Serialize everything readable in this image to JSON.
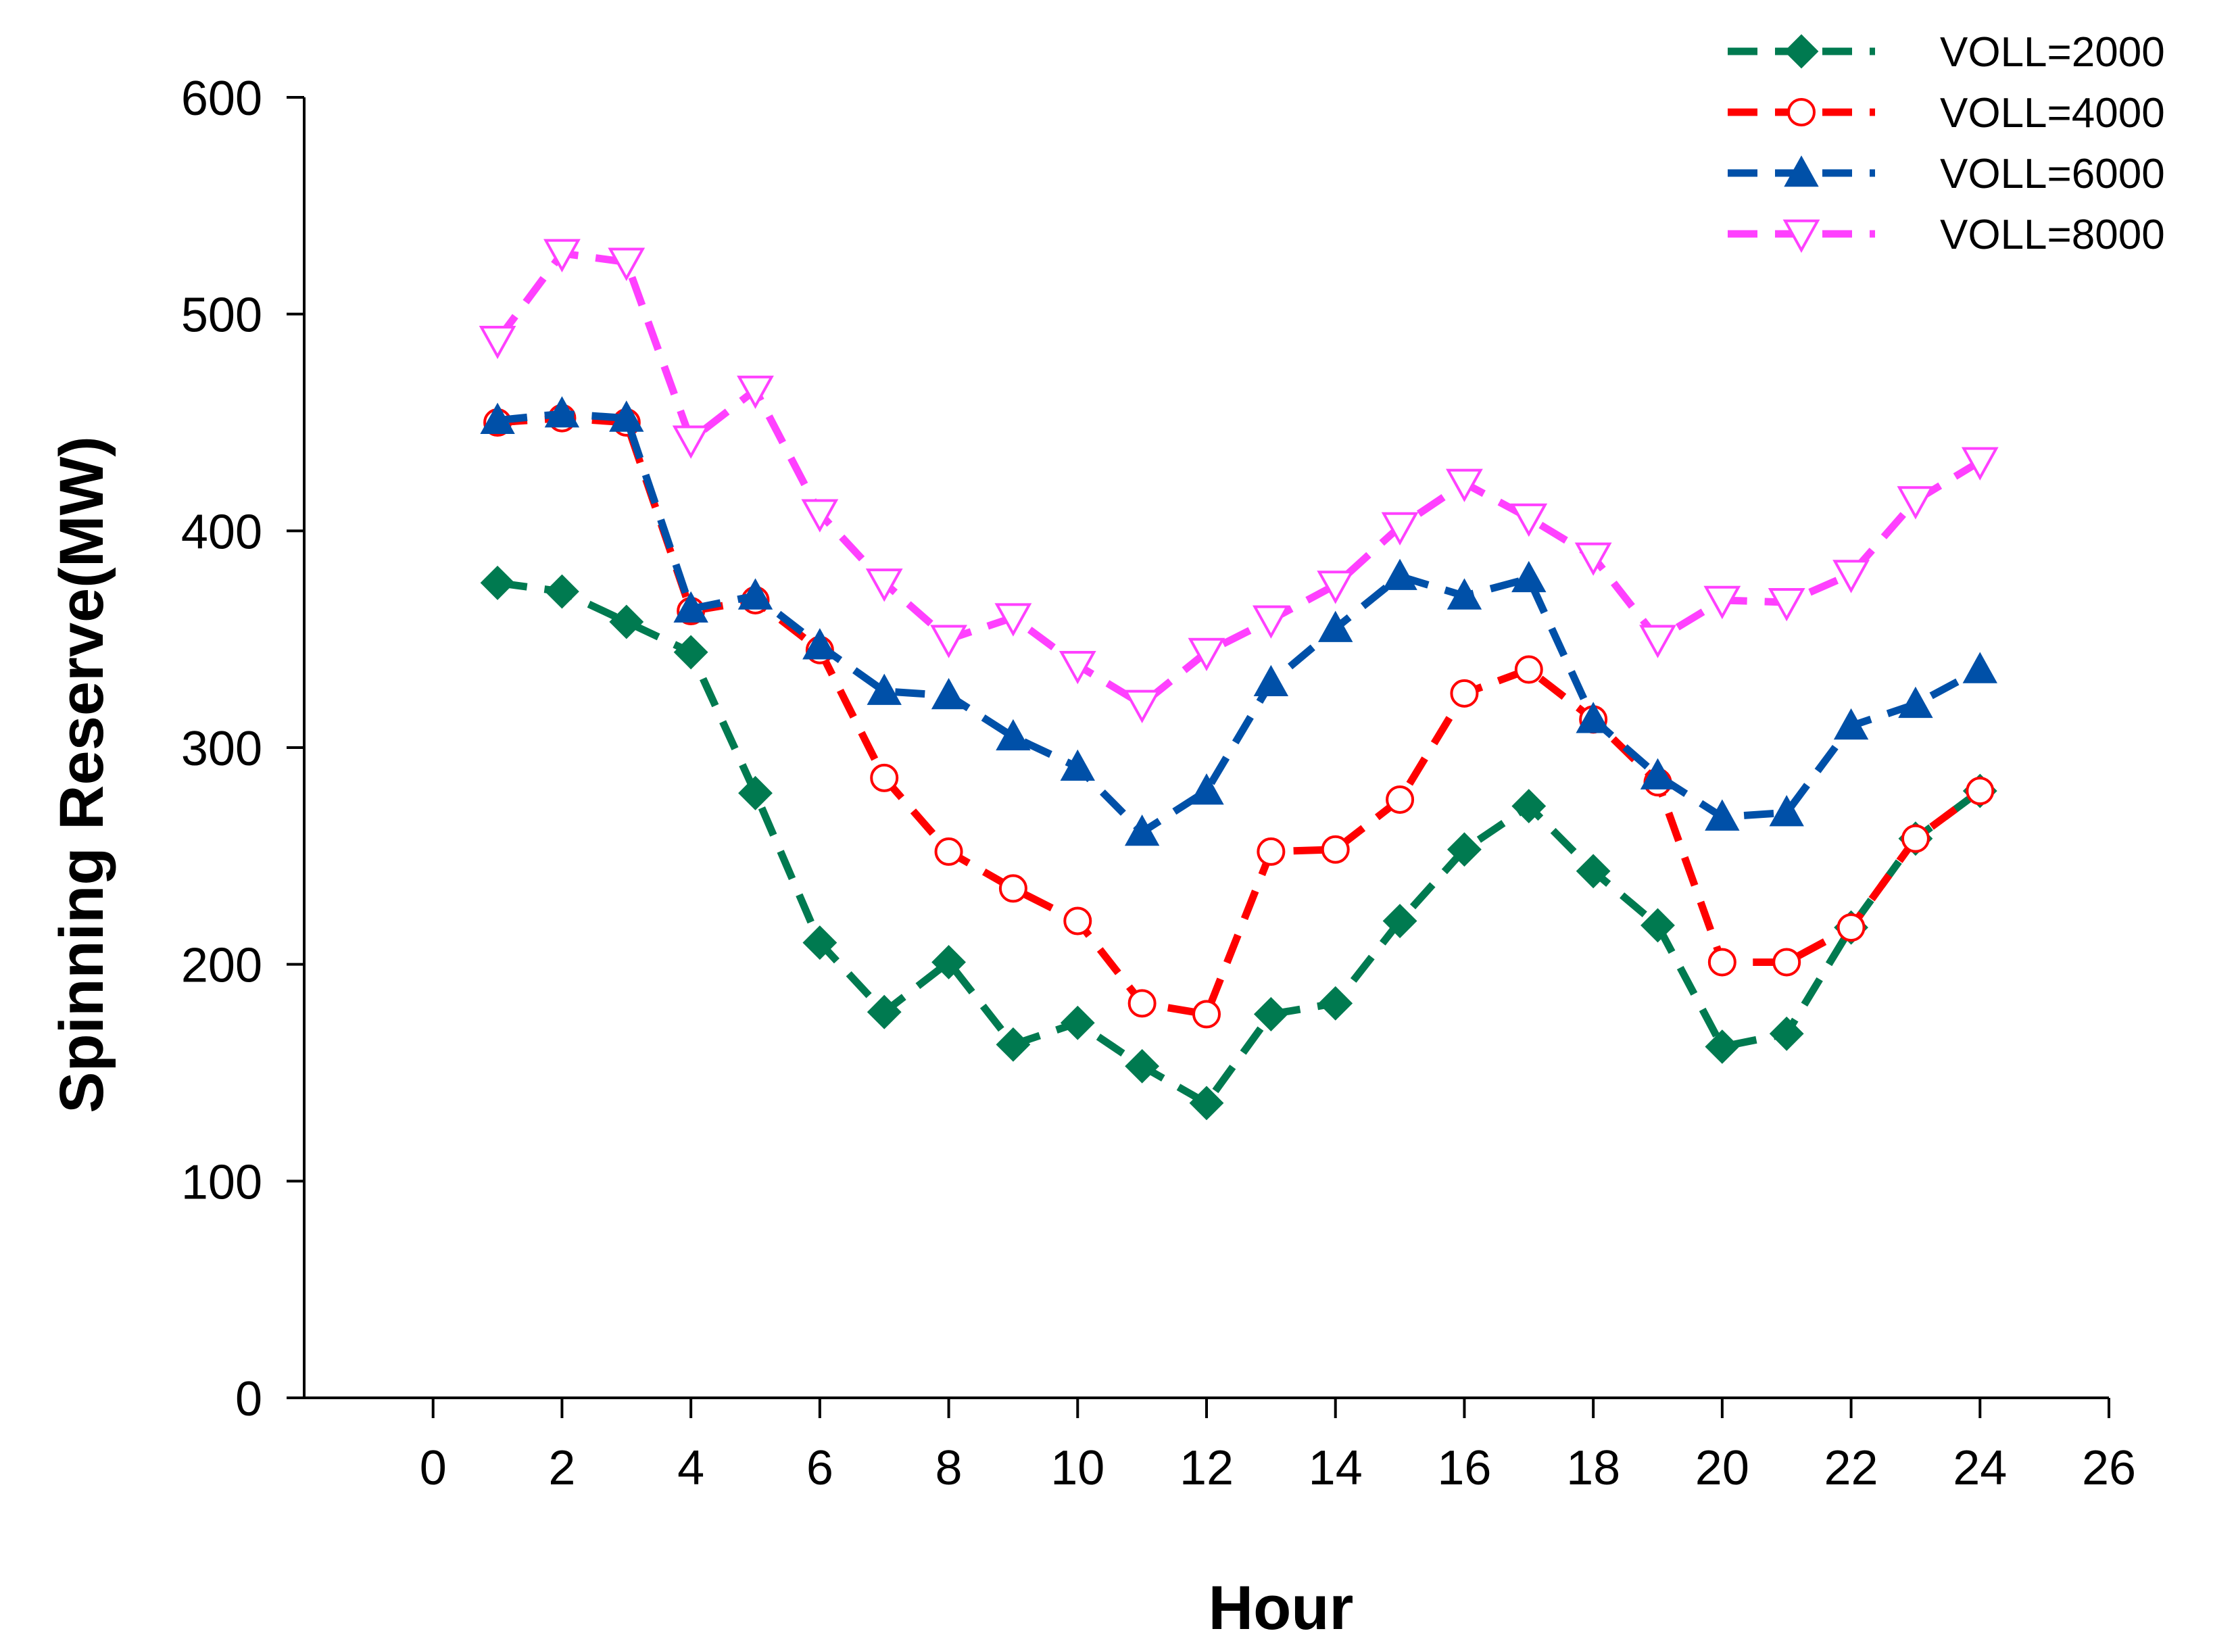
{
  "chart_data": {
    "type": "line",
    "title": "",
    "xlabel": "Hour",
    "ylabel": "Spinning Reserve(MW)",
    "xlim": [
      -2,
      26
    ],
    "ylim": [
      0,
      600
    ],
    "xticks": [
      0,
      2,
      4,
      6,
      8,
      10,
      12,
      14,
      16,
      18,
      20,
      22,
      24,
      26
    ],
    "yticks": [
      0,
      100,
      200,
      300,
      400,
      500,
      600
    ],
    "legend_position": "top-right",
    "x": [
      1,
      2,
      3,
      4,
      5,
      6,
      7,
      8,
      9,
      10,
      11,
      12,
      13,
      14,
      15,
      16,
      17,
      18,
      19,
      20,
      21,
      22,
      23,
      24
    ],
    "series": [
      {
        "name": "VOLL=2000",
        "color": "#007a50",
        "marker": "diamond",
        "values": [
          376,
          372,
          358,
          344,
          279,
          210,
          178,
          201,
          163,
          173,
          153,
          136,
          177,
          182,
          220,
          253,
          273,
          243,
          218,
          162,
          168,
          217,
          258,
          280
        ]
      },
      {
        "name": "VOLL=4000",
        "color": "#ff0000",
        "marker": "open-circle",
        "values": [
          450,
          452,
          450,
          363,
          368,
          345,
          286,
          252,
          235,
          220,
          182,
          177,
          252,
          253,
          276,
          325,
          336,
          313,
          284,
          201,
          201,
          217,
          258,
          280
        ]
      },
      {
        "name": "VOLL=6000",
        "color": "#0050a8",
        "marker": "triangle-up",
        "values": [
          451,
          454,
          452,
          364,
          370,
          347,
          326,
          324,
          305,
          291,
          261,
          280,
          330,
          355,
          379,
          370,
          378,
          313,
          287,
          268,
          270,
          310,
          320,
          336
        ]
      },
      {
        "name": "VOLL=8000",
        "color": "#ff40ff",
        "marker": "open-triangle-down",
        "values": [
          488,
          528,
          524,
          442,
          465,
          408,
          376,
          350,
          360,
          338,
          320,
          344,
          359,
          375,
          402,
          422,
          406,
          388,
          350,
          368,
          367,
          380,
          414,
          432
        ]
      }
    ]
  }
}
